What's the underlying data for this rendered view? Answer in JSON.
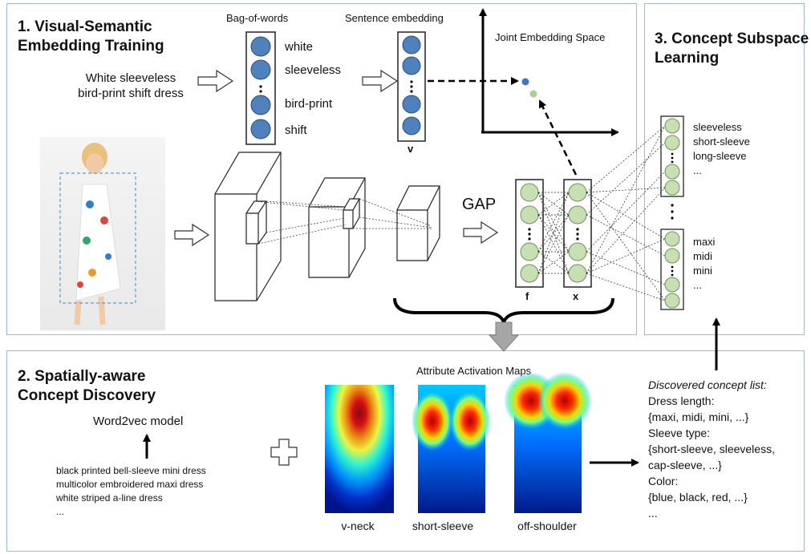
{
  "panel1": {
    "title_line1": "1. Visual-Semantic",
    "title_line2": "Embedding Training",
    "input_text_line1": "White sleeveless",
    "input_text_line2": "bird-print shift dress",
    "bag_of_words_label": "Bag-of-words",
    "bag_of_words": [
      "white",
      "sleeveless",
      "bird-print",
      "shift"
    ],
    "sentence_embedding_label": "Sentence embedding",
    "sentence_vector_label": "v",
    "joint_space_label": "Joint Embedding Space",
    "gap_label": "GAP",
    "f_label": "f",
    "x_label": "x"
  },
  "panel2": {
    "title_line1": "2. Spatially-aware",
    "title_line2": "Concept Discovery",
    "word2vec_label": "Word2vec model",
    "sentences": [
      "black printed bell-sleeve mini dress",
      "multicolor embroidered maxi dress",
      "white striped a-line dress",
      "..."
    ],
    "activation_maps_label": "Attribute Activation Maps",
    "maps": [
      "v-neck",
      "short-sleeve",
      "off-shoulder"
    ]
  },
  "panel3": {
    "title_line1": "3. Concept Subspace",
    "title_line2": "Learning",
    "group1": [
      "sleeveless",
      "short-sleeve",
      "long-sleeve",
      "..."
    ],
    "group2": [
      "maxi",
      "midi",
      "mini",
      "..."
    ]
  },
  "concept_list": {
    "heading": "Discovered concept list:",
    "lines": [
      "Dress length:",
      "{maxi, midi, mini, ...}",
      "Sleeve type:",
      "{short-sleeve, sleeveless,",
      "cap-sleeve, ...}",
      "Color:",
      "{blue, black, red, ...}",
      "..."
    ]
  },
  "colors": {
    "panel_border": "#9db9d8",
    "blue_node": "#4f81bd",
    "green_node": "#c6e0b4",
    "point_blue": "#4472c4",
    "point_green": "#a9d08e"
  }
}
